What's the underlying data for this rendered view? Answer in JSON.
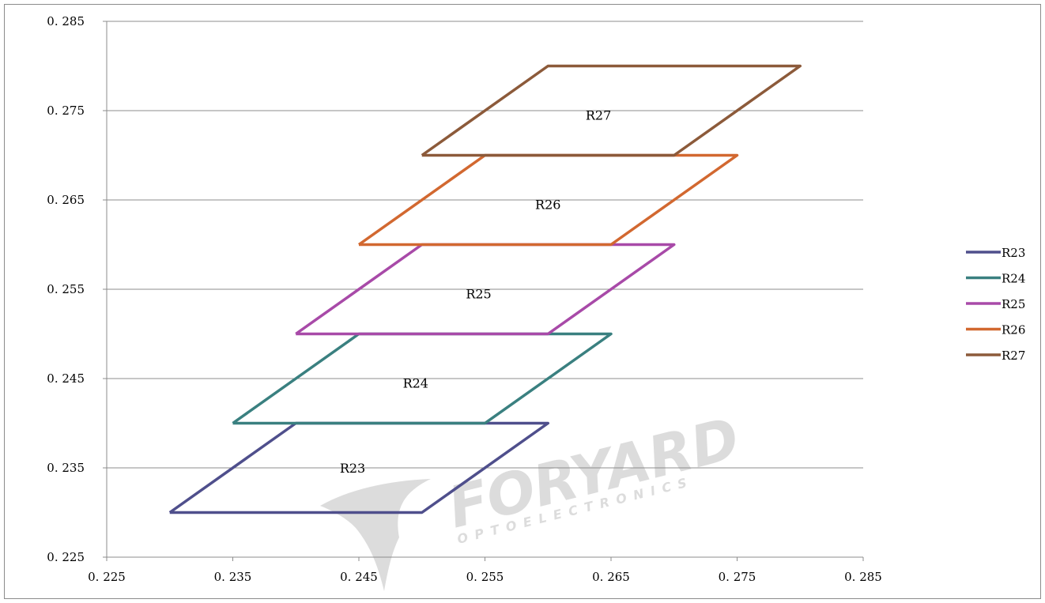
{
  "chart_data": {
    "type": "line",
    "title": "",
    "xlabel": "",
    "ylabel": "",
    "xlim": [
      0.225,
      0.285
    ],
    "ylim": [
      0.225,
      0.285
    ],
    "x_ticks": [
      0.225,
      0.235,
      0.245,
      0.255,
      0.265,
      0.275,
      0.285
    ],
    "y_ticks": [
      0.225,
      0.235,
      0.245,
      0.255,
      0.265,
      0.275,
      0.285
    ],
    "x_tick_labels": [
      "0. 225",
      "0. 235",
      "0. 245",
      "0. 255",
      "0. 265",
      "0. 275",
      "0. 285"
    ],
    "y_tick_labels": [
      "0. 225",
      "0. 235",
      "0. 245",
      "0. 255",
      "0. 265",
      "0. 275",
      "0. 285"
    ],
    "grid": "horizontal",
    "legend_position": "right",
    "series": [
      {
        "name": "R23",
        "color": "#4F4F8C",
        "points": [
          [
            0.23,
            0.23
          ],
          [
            0.25,
            0.23
          ],
          [
            0.26,
            0.24
          ],
          [
            0.24,
            0.24
          ],
          [
            0.23,
            0.23
          ]
        ],
        "label": "R23",
        "label_at": [
          0.2445,
          0.235
        ]
      },
      {
        "name": "R24",
        "color": "#3A8080",
        "points": [
          [
            0.235,
            0.24
          ],
          [
            0.255,
            0.24
          ],
          [
            0.265,
            0.25
          ],
          [
            0.245,
            0.25
          ],
          [
            0.235,
            0.24
          ]
        ],
        "label": "R24",
        "label_at": [
          0.2495,
          0.2445
        ]
      },
      {
        "name": "R25",
        "color": "#A84AA8",
        "points": [
          [
            0.24,
            0.25
          ],
          [
            0.26,
            0.25
          ],
          [
            0.27,
            0.26
          ],
          [
            0.25,
            0.26
          ],
          [
            0.24,
            0.25
          ]
        ],
        "label": "R25",
        "label_at": [
          0.2545,
          0.2545
        ]
      },
      {
        "name": "R26",
        "color": "#D26830",
        "points": [
          [
            0.245,
            0.26
          ],
          [
            0.265,
            0.26
          ],
          [
            0.275,
            0.27
          ],
          [
            0.255,
            0.27
          ],
          [
            0.245,
            0.26
          ]
        ],
        "label": "R26",
        "label_at": [
          0.26,
          0.2645
        ]
      },
      {
        "name": "R27",
        "color": "#8C5A3A",
        "points": [
          [
            0.25,
            0.27
          ],
          [
            0.27,
            0.27
          ],
          [
            0.28,
            0.28
          ],
          [
            0.26,
            0.28
          ],
          [
            0.25,
            0.27
          ]
        ],
        "label": "R27",
        "label_at": [
          0.264,
          0.2745
        ]
      }
    ]
  },
  "watermark": {
    "brand": "FORYARD",
    "tagline": "OPTOELECTRONICS",
    "color": "#d9d9d9"
  }
}
